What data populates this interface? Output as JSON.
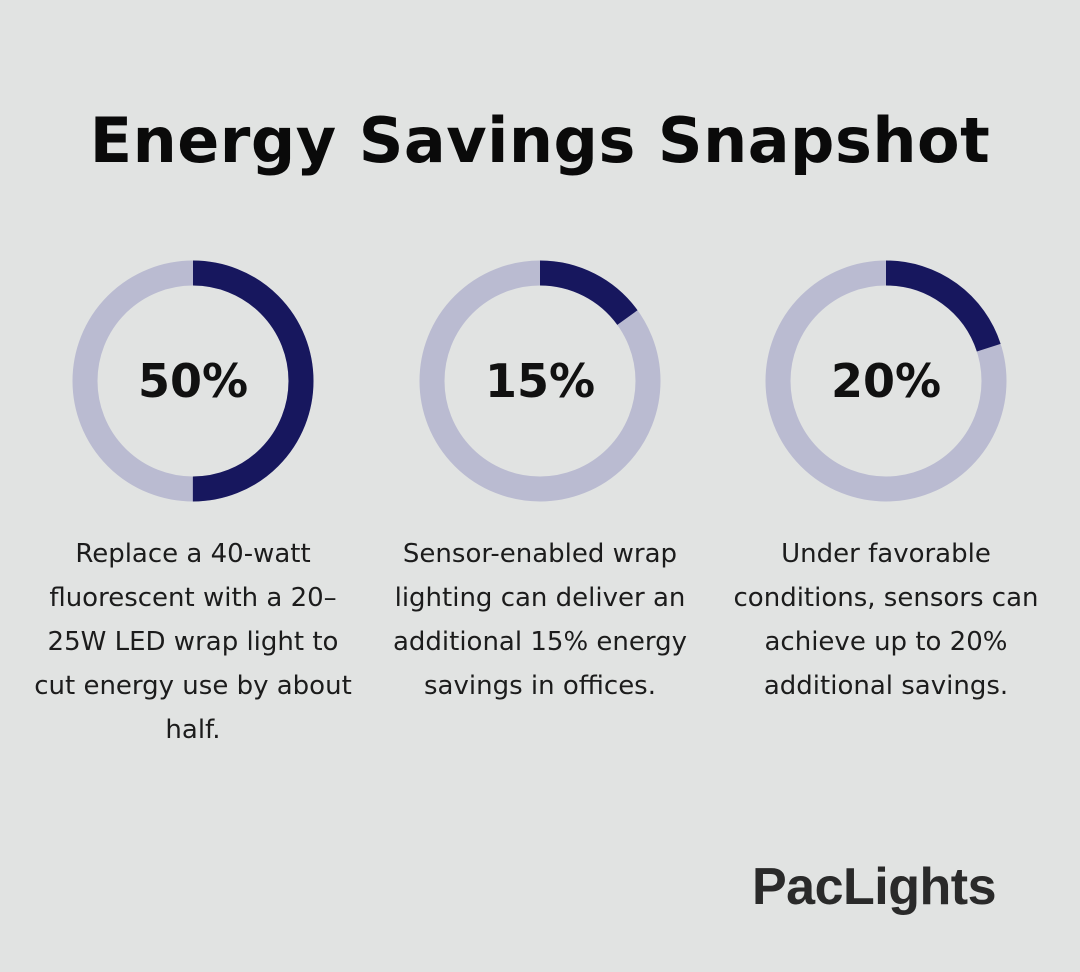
{
  "title": "Energy Savings Snapshot",
  "chart_data": {
    "type": "donut",
    "title": "Energy Savings Snapshot",
    "colors": {
      "filled": "#17175e",
      "track": "#babbd1"
    },
    "items": [
      {
        "value": 50,
        "label": "50%",
        "description": "Replace a 40-watt fluorescent with a 20–25W LED wrap light to cut energy use by about half."
      },
      {
        "value": 15,
        "label": "15%",
        "description": "Sensor-enabled wrap lighting can deliver an additional 15% energy savings in offices."
      },
      {
        "value": 20,
        "label": "20%",
        "description": "Under favorable conditions, sensors can achieve up to 20% additional savings."
      }
    ]
  },
  "brand": {
    "logo_text": "PacLights"
  }
}
